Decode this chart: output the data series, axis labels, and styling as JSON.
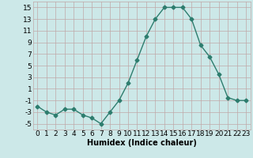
{
  "x": [
    0,
    1,
    2,
    3,
    4,
    5,
    6,
    7,
    8,
    9,
    10,
    11,
    12,
    13,
    14,
    15,
    16,
    17,
    18,
    19,
    20,
    21,
    22,
    23
  ],
  "y": [
    -2,
    -3,
    -3.5,
    -2.5,
    -2.5,
    -3.5,
    -4,
    -5,
    -3,
    -1,
    2,
    6,
    10,
    13,
    15,
    15,
    15,
    13,
    8.5,
    6.5,
    3.5,
    -0.5,
    -1,
    -1
  ],
  "line_color": "#2d7d6e",
  "marker": "D",
  "marker_size": 2.5,
  "bg_color": "#cce8e8",
  "grid_color": "#c0a8a8",
  "xlabel": "Humidex (Indice chaleur)",
  "xlabel_fontsize": 7,
  "xtick_labels": [
    "0",
    "1",
    "2",
    "3",
    "4",
    "5",
    "6",
    "7",
    "8",
    "9",
    "10",
    "11",
    "12",
    "13",
    "14",
    "15",
    "16",
    "17",
    "18",
    "19",
    "20",
    "21",
    "22",
    "23"
  ],
  "ytick_values": [
    -5,
    -3,
    -1,
    1,
    3,
    5,
    7,
    9,
    11,
    13,
    15
  ],
  "ylim": [
    -6,
    16
  ],
  "xlim": [
    -0.5,
    23.5
  ],
  "tick_fontsize": 6.5,
  "line_width": 1.0
}
